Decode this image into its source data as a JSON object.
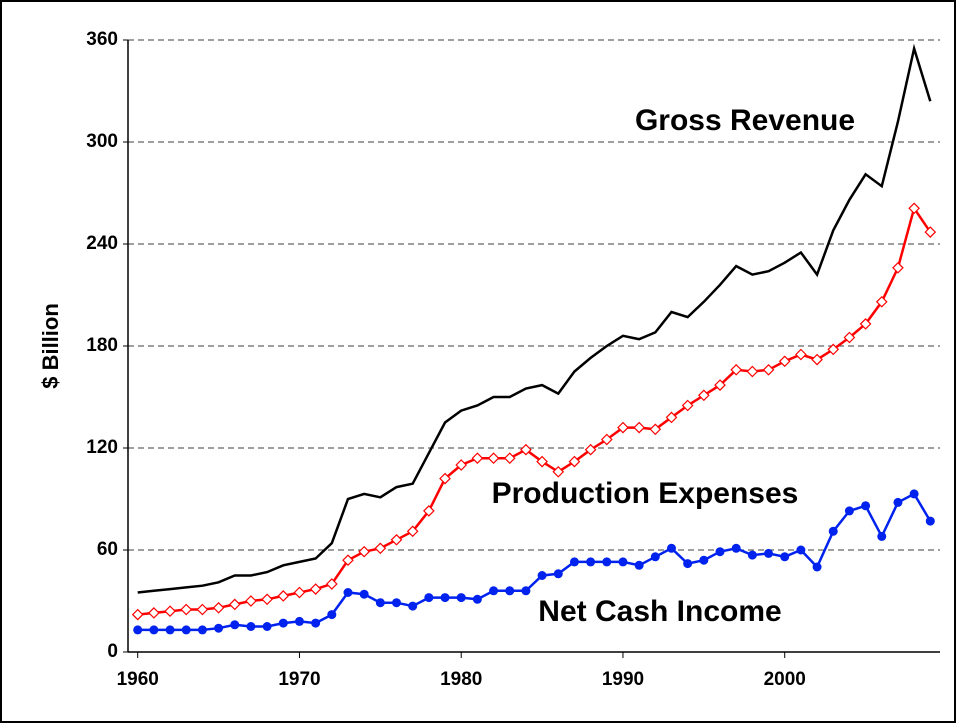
{
  "chart_data": {
    "type": "line",
    "y_label": "$ Billion",
    "x": [
      1960,
      1961,
      1962,
      1963,
      1964,
      1965,
      1966,
      1967,
      1968,
      1969,
      1970,
      1971,
      1972,
      1973,
      1974,
      1975,
      1976,
      1977,
      1978,
      1979,
      1980,
      1981,
      1982,
      1983,
      1984,
      1985,
      1986,
      1987,
      1988,
      1989,
      1990,
      1991,
      1992,
      1993,
      1994,
      1995,
      1996,
      1997,
      1998,
      1999,
      2000,
      2001,
      2002,
      2003,
      2004,
      2005,
      2006,
      2007,
      2008,
      2009
    ],
    "series": [
      {
        "name": "Gross Revenue",
        "color": "#000000",
        "marker": "none",
        "values": [
          35,
          36,
          37,
          38,
          39,
          41,
          45,
          45,
          47,
          51,
          53,
          55,
          64,
          90,
          93,
          91,
          97,
          99,
          117,
          135,
          142,
          145,
          150,
          150,
          155,
          157,
          152,
          165,
          173,
          180,
          186,
          184,
          188,
          200,
          197,
          206,
          216,
          227,
          222,
          224,
          229,
          235,
          222,
          248,
          266,
          281,
          274,
          312,
          355,
          324
        ]
      },
      {
        "name": "Production Expenses",
        "color": "#ff0000",
        "marker": "diamond",
        "values": [
          22,
          23,
          24,
          25,
          25,
          26,
          28,
          30,
          31,
          33,
          35,
          37,
          40,
          54,
          59,
          61,
          66,
          71,
          83,
          102,
          110,
          114,
          114,
          114,
          119,
          112,
          106,
          112,
          119,
          125,
          132,
          132,
          131,
          138,
          145,
          151,
          157,
          166,
          165,
          166,
          171,
          175,
          172,
          178,
          185,
          193,
          206,
          226,
          261,
          247
        ]
      },
      {
        "name": "Net Cash Income",
        "color": "#0022ee",
        "label_color": "#333399",
        "marker": "circle",
        "values": [
          13,
          13,
          13,
          13,
          13,
          14,
          16,
          15,
          15,
          17,
          18,
          17,
          22,
          35,
          34,
          29,
          29,
          27,
          32,
          32,
          32,
          31,
          36,
          36,
          36,
          45,
          46,
          53,
          53,
          53,
          53,
          51,
          56,
          61,
          52,
          54,
          59,
          61,
          57,
          58,
          56,
          60,
          50,
          71,
          83,
          86,
          68,
          88,
          93,
          77
        ]
      }
    ],
    "xlim": [
      1959.4,
      2009.6
    ],
    "xticks": [
      1960,
      1970,
      1980,
      1990,
      2000
    ],
    "ylim": [
      0,
      360
    ],
    "yticks": [
      0,
      60,
      120,
      180,
      240,
      300,
      360
    ],
    "grid": true
  }
}
